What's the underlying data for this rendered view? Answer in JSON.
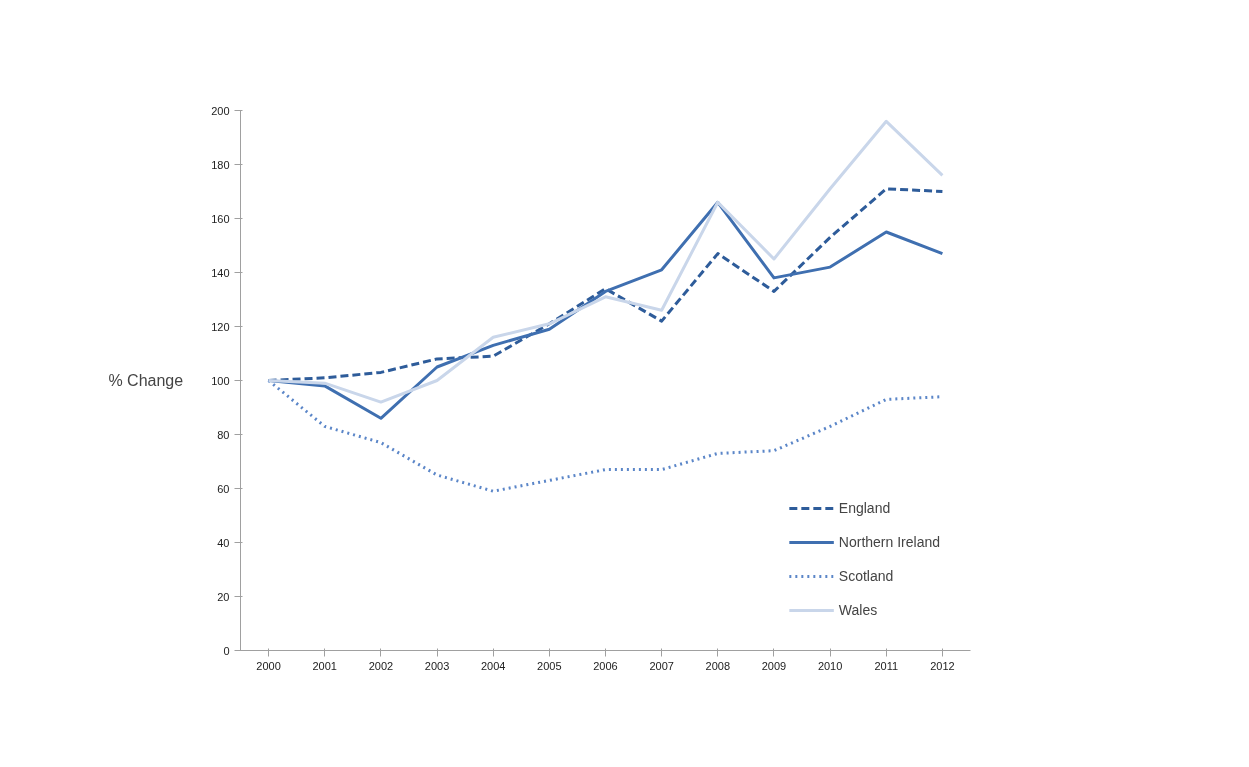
{
  "chart_data": {
    "type": "line",
    "ylabel": "% Change",
    "categories": [
      "2000",
      "2001",
      "2002",
      "2003",
      "2004",
      "2005",
      "2006",
      "2007",
      "2008",
      "2009",
      "2010",
      "2011",
      "2012"
    ],
    "series": [
      {
        "name": "England",
        "color": "#2e5c9a",
        "line_style": "dashed",
        "values": [
          100,
          101,
          103,
          108,
          109,
          121,
          134,
          122,
          147,
          133,
          153,
          171,
          170
        ]
      },
      {
        "name": "Northern Ireland",
        "color": "#3f6fb0",
        "line_style": "solid",
        "values": [
          100,
          98,
          86,
          105,
          113,
          119,
          133,
          141,
          166,
          138,
          142,
          155,
          147
        ]
      },
      {
        "name": "Scotland",
        "color": "#5b86c8",
        "line_style": "dotted",
        "values": [
          100,
          83,
          77,
          65,
          59,
          63,
          67,
          67,
          73,
          74,
          83,
          93,
          94
        ]
      },
      {
        "name": "Wales",
        "color": "#c9d6ea",
        "line_style": "solid",
        "values": [
          100,
          99,
          92,
          100,
          116,
          121,
          131,
          126,
          166,
          145,
          171,
          196,
          176
        ]
      }
    ],
    "ylim": [
      0,
      200
    ],
    "yticks": [
      0,
      20,
      40,
      60,
      80,
      100,
      120,
      140,
      160,
      180,
      200
    ],
    "grid": false,
    "legend": "bottom right"
  }
}
